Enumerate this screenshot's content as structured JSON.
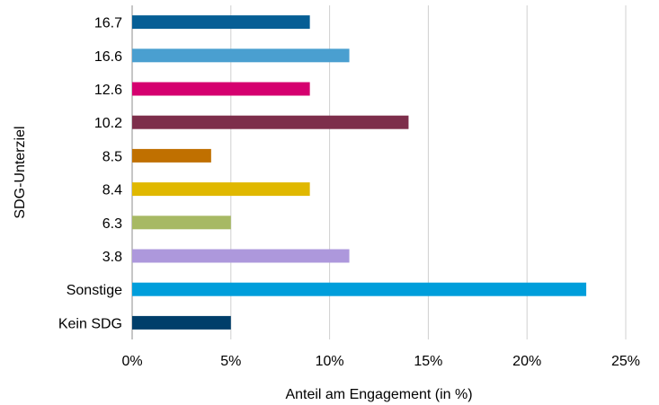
{
  "chart_data": {
    "type": "bar",
    "orientation": "horizontal",
    "xlabel": "Anteil am Engagement (in %)",
    "ylabel": "SDG-Unterziel",
    "xlim": [
      0,
      25
    ],
    "xticks": [
      0,
      5,
      10,
      15,
      20,
      25
    ],
    "xtick_labels": [
      "0%",
      "5%",
      "10%",
      "15%",
      "20%",
      "25%"
    ],
    "grid": "vertical",
    "legend": "none",
    "categories": [
      "16.7",
      "16.6",
      "12.6",
      "10.2",
      "8.5",
      "8.4",
      "6.3",
      "3.8",
      "Sonstige",
      "Kein SDG"
    ],
    "values": [
      9,
      11,
      9,
      14,
      4,
      9,
      5,
      11,
      23,
      5
    ],
    "colors": [
      "#065E95",
      "#4A9FD0",
      "#D5006F",
      "#7D2E4B",
      "#C07000",
      "#E0B800",
      "#A7B964",
      "#AD98DC",
      "#009EDB",
      "#003E6A"
    ]
  }
}
